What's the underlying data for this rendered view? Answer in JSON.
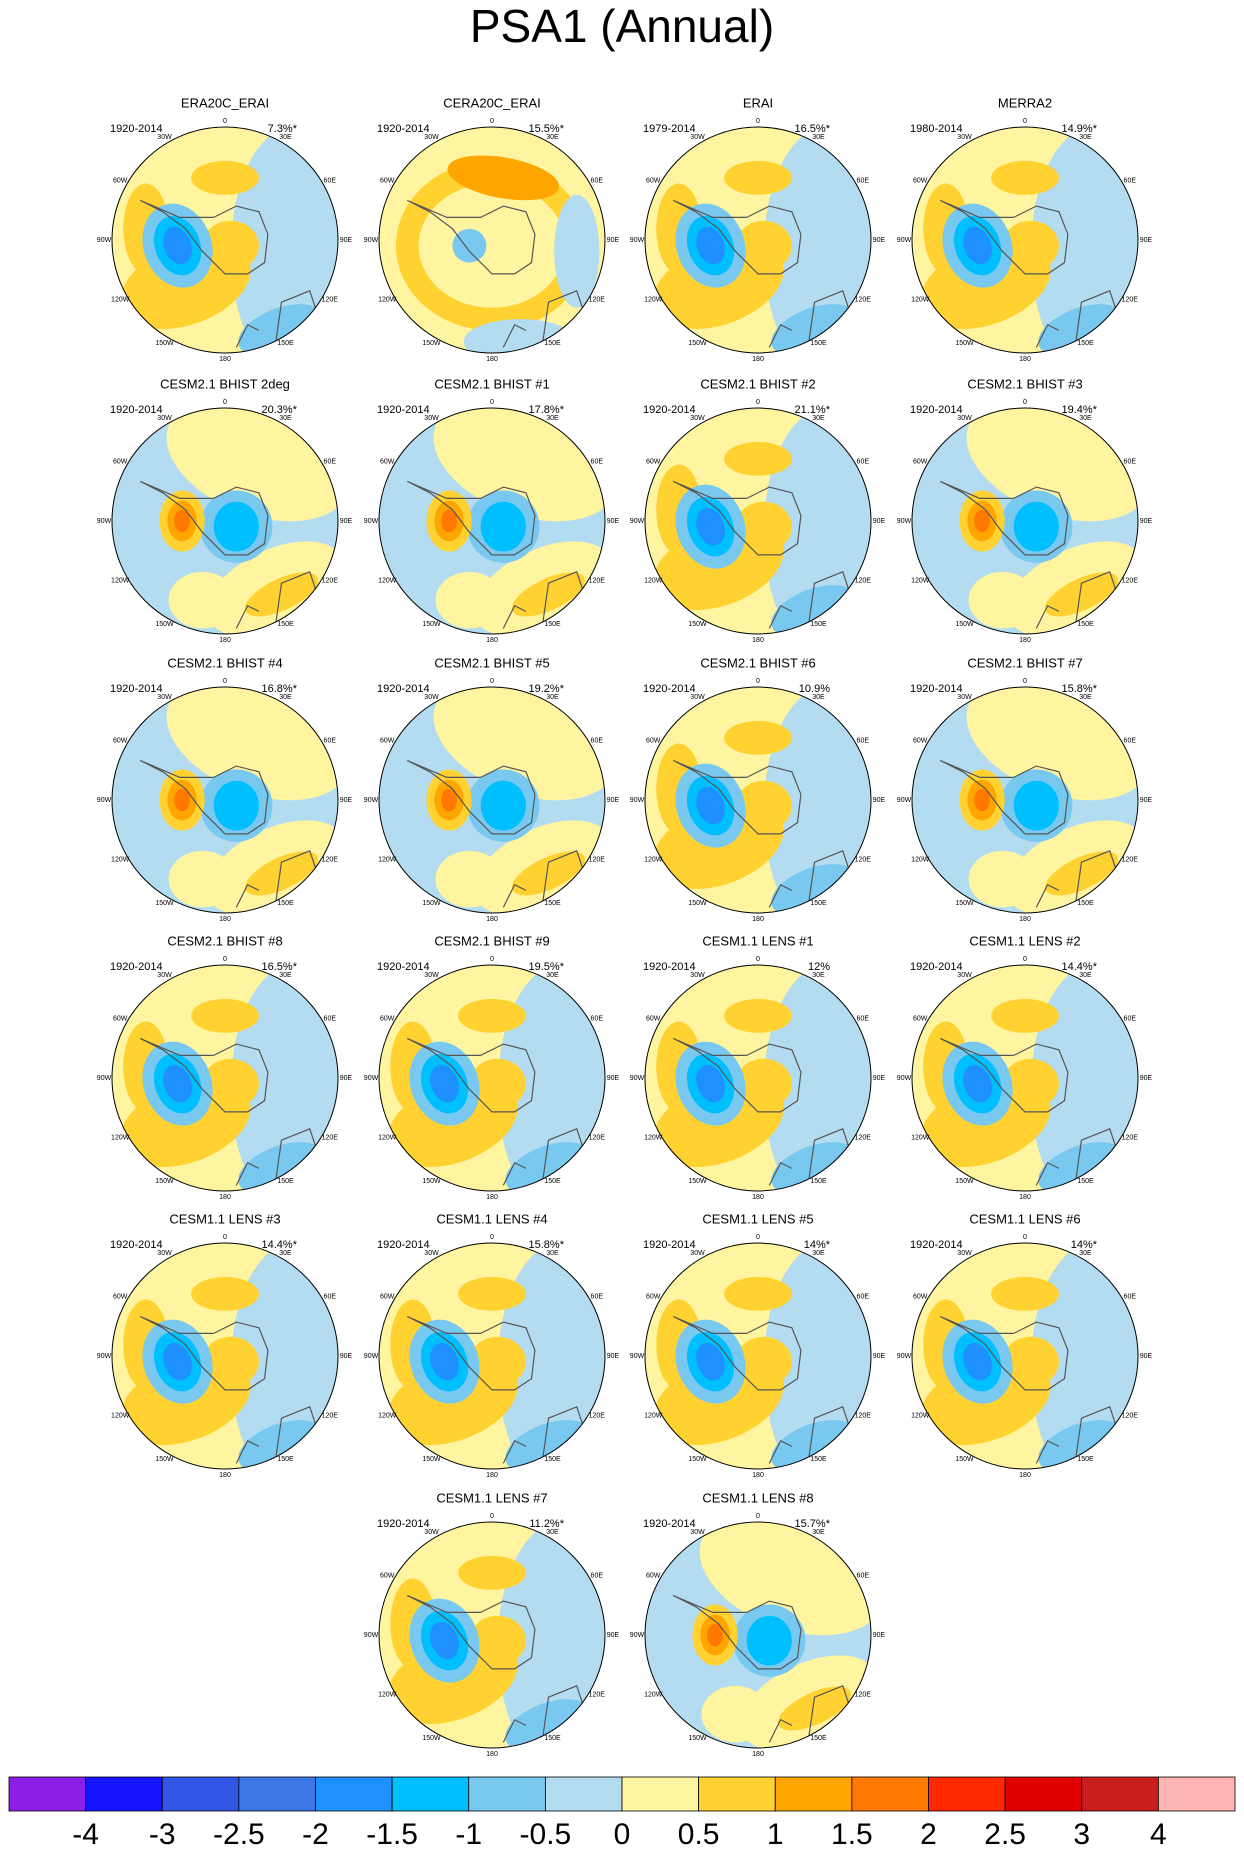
{
  "header": {
    "title": "PSA1 (Annual)"
  },
  "lon_labels": [
    "0",
    "30E",
    "60E",
    "90E",
    "120E",
    "150E",
    "180",
    "150W",
    "120W",
    "90W",
    "60W",
    "30W"
  ],
  "panels": [
    {
      "title": "ERA20C_ERAI",
      "period": "1920-2014",
      "percent": "7.3%*"
    },
    {
      "title": "CERA20C_ERAI",
      "period": "1920-2014",
      "percent": "15.5%*"
    },
    {
      "title": "ERAI",
      "period": "1979-2014",
      "percent": "16.5%*"
    },
    {
      "title": "MERRA2",
      "period": "1980-2014",
      "percent": "14.9%*"
    },
    {
      "title": "CESM2.1 BHIST 2deg",
      "period": "1920-2014",
      "percent": "20.3%*"
    },
    {
      "title": "CESM2.1 BHIST #1",
      "period": "1920-2014",
      "percent": "17.8%*"
    },
    {
      "title": "CESM2.1 BHIST #2",
      "period": "1920-2014",
      "percent": "21.1%*"
    },
    {
      "title": "CESM2.1 BHIST #3",
      "period": "1920-2014",
      "percent": "19.4%*"
    },
    {
      "title": "CESM2.1 BHIST #4",
      "period": "1920-2014",
      "percent": "16.8%*"
    },
    {
      "title": "CESM2.1 BHIST #5",
      "period": "1920-2014",
      "percent": "19.2%*"
    },
    {
      "title": "CESM2.1 BHIST #6",
      "period": "1920-2014",
      "percent": "10.9%"
    },
    {
      "title": "CESM2.1 BHIST #7",
      "period": "1920-2014",
      "percent": "15.8%*"
    },
    {
      "title": "CESM2.1 BHIST #8",
      "period": "1920-2014",
      "percent": "16.5%*"
    },
    {
      "title": "CESM2.1 BHIST #9",
      "period": "1920-2014",
      "percent": "19.5%*"
    },
    {
      "title": "CESM1.1 LENS #1",
      "period": "1920-2014",
      "percent": "12%"
    },
    {
      "title": "CESM1.1 LENS #2",
      "period": "1920-2014",
      "percent": "14.4%*"
    },
    {
      "title": "CESM1.1 LENS #3",
      "period": "1920-2014",
      "percent": "14.4%*"
    },
    {
      "title": "CESM1.1 LENS #4",
      "period": "1920-2014",
      "percent": "15.8%*"
    },
    {
      "title": "CESM1.1 LENS #5",
      "period": "1920-2014",
      "percent": "14%*"
    },
    {
      "title": "CESM1.1 LENS #6",
      "period": "1920-2014",
      "percent": "14%*"
    },
    {
      "title": "CESM1.1 LENS #7",
      "period": "1920-2014",
      "percent": "11.2%*"
    },
    {
      "title": "CESM1.1 LENS #8",
      "period": "1920-2014",
      "percent": "15.7%*"
    }
  ],
  "colorbar": {
    "colors": [
      "#8c1ee6",
      "#1414ff",
      "#3255e6",
      "#3c78e6",
      "#1e90ff",
      "#00bfff",
      "#78c8f0",
      "#b4dcf0",
      "#fff5a0",
      "#ffd232",
      "#ffa500",
      "#ff7800",
      "#ff2800",
      "#e10000",
      "#c81e1e",
      "#ffb4b4"
    ],
    "labels": [
      "-4",
      "-3",
      "-2.5",
      "-2",
      "-1.5",
      "-1",
      "-0.5",
      "0",
      "0.5",
      "1",
      "1.5",
      "2",
      "2.5",
      "3",
      "4"
    ]
  }
}
